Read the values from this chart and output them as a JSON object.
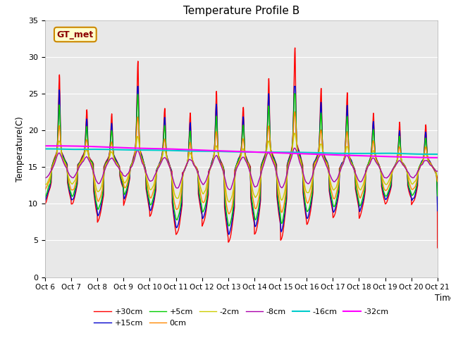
{
  "title": "Temperature Profile B",
  "xlabel": "Time",
  "ylabel": "Temperature(C)",
  "ylim": [
    0,
    35
  ],
  "xlim": [
    0,
    15
  ],
  "plot_bg_color": "#e8e8e8",
  "annotation_text": "GT_met",
  "annotation_bg": "#ffffcc",
  "annotation_edge": "#cc8800",
  "series": [
    {
      "label": "+30cm",
      "color": "#ff0000",
      "lw": 1.0
    },
    {
      "label": "+15cm",
      "color": "#0000cc",
      "lw": 1.0
    },
    {
      "label": "+5cm",
      "color": "#00cc00",
      "lw": 1.0
    },
    {
      "label": "0cm",
      "color": "#ff8800",
      "lw": 1.0
    },
    {
      "label": "-2cm",
      "color": "#cccc00",
      "lw": 1.0
    },
    {
      "label": "-8cm",
      "color": "#aa00aa",
      "lw": 1.0
    },
    {
      "label": "-16cm",
      "color": "#00cccc",
      "lw": 1.5
    },
    {
      "label": "-32cm",
      "color": "#ff00ff",
      "lw": 1.5
    }
  ],
  "xtick_labels": [
    "Oct 6",
    "Oct 7",
    "Oct 8",
    "Oct 9",
    "Oct 10",
    "Oct 11",
    "Oct 12",
    "Oct 13",
    "Oct 14",
    "Oct 15",
    "Oct 16",
    "Oct 17",
    "Oct 18",
    "Oct 19",
    "Oct 20",
    "Oct 21"
  ],
  "ytick_vals": [
    0,
    5,
    10,
    15,
    20,
    25,
    30,
    35
  ]
}
